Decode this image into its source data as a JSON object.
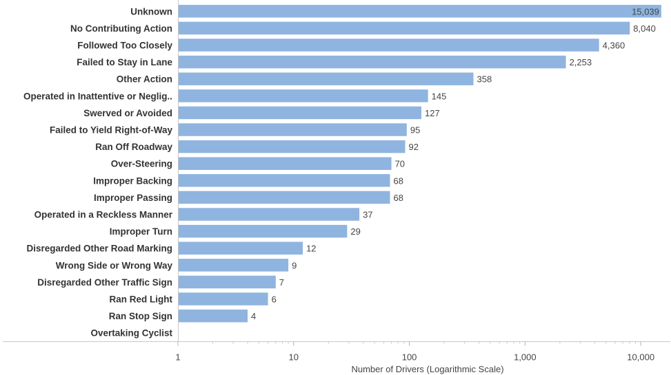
{
  "chart_data": {
    "type": "bar",
    "orientation": "horizontal",
    "xscale": "log",
    "xlim": [
      1,
      18000
    ],
    "xticks": [
      1,
      10,
      100,
      1000,
      10000
    ],
    "xtick_labels": [
      "1",
      "10",
      "100",
      "1,000",
      "10,000"
    ],
    "xlabel": "Number of Drivers (Logarithmic Scale)",
    "ylabel": "",
    "grid": false,
    "bar_color": "#8fb4e0",
    "categories": [
      "Unknown",
      "No Contributing Action",
      "Followed Too Closely",
      "Failed to Stay in Lane",
      "Other Action",
      "Operated in Inattentive or Neglig..",
      "Swerved or Avoided",
      "Failed to Yield Right-of-Way",
      "Ran Off Roadway",
      "Over-Steering",
      "Improper Backing",
      "Improper Passing",
      "Operated in a Reckless Manner",
      "Improper Turn",
      "Disregarded Other Road Marking",
      "Wrong Side or Wrong Way",
      "Disregarded Other Traffic Sign",
      "Ran Red Light",
      "Ran Stop Sign",
      "Overtaking Cyclist"
    ],
    "values": [
      15039,
      8040,
      4360,
      2253,
      358,
      145,
      127,
      95,
      92,
      70,
      68,
      68,
      37,
      29,
      12,
      9,
      7,
      6,
      4,
      1
    ],
    "value_labels": [
      "15,039",
      "8,040",
      "4,360",
      "2,253",
      "358",
      "145",
      "127",
      "95",
      "92",
      "70",
      "68",
      "68",
      "37",
      "29",
      "12",
      "9",
      "7",
      "6",
      "4",
      ""
    ]
  }
}
